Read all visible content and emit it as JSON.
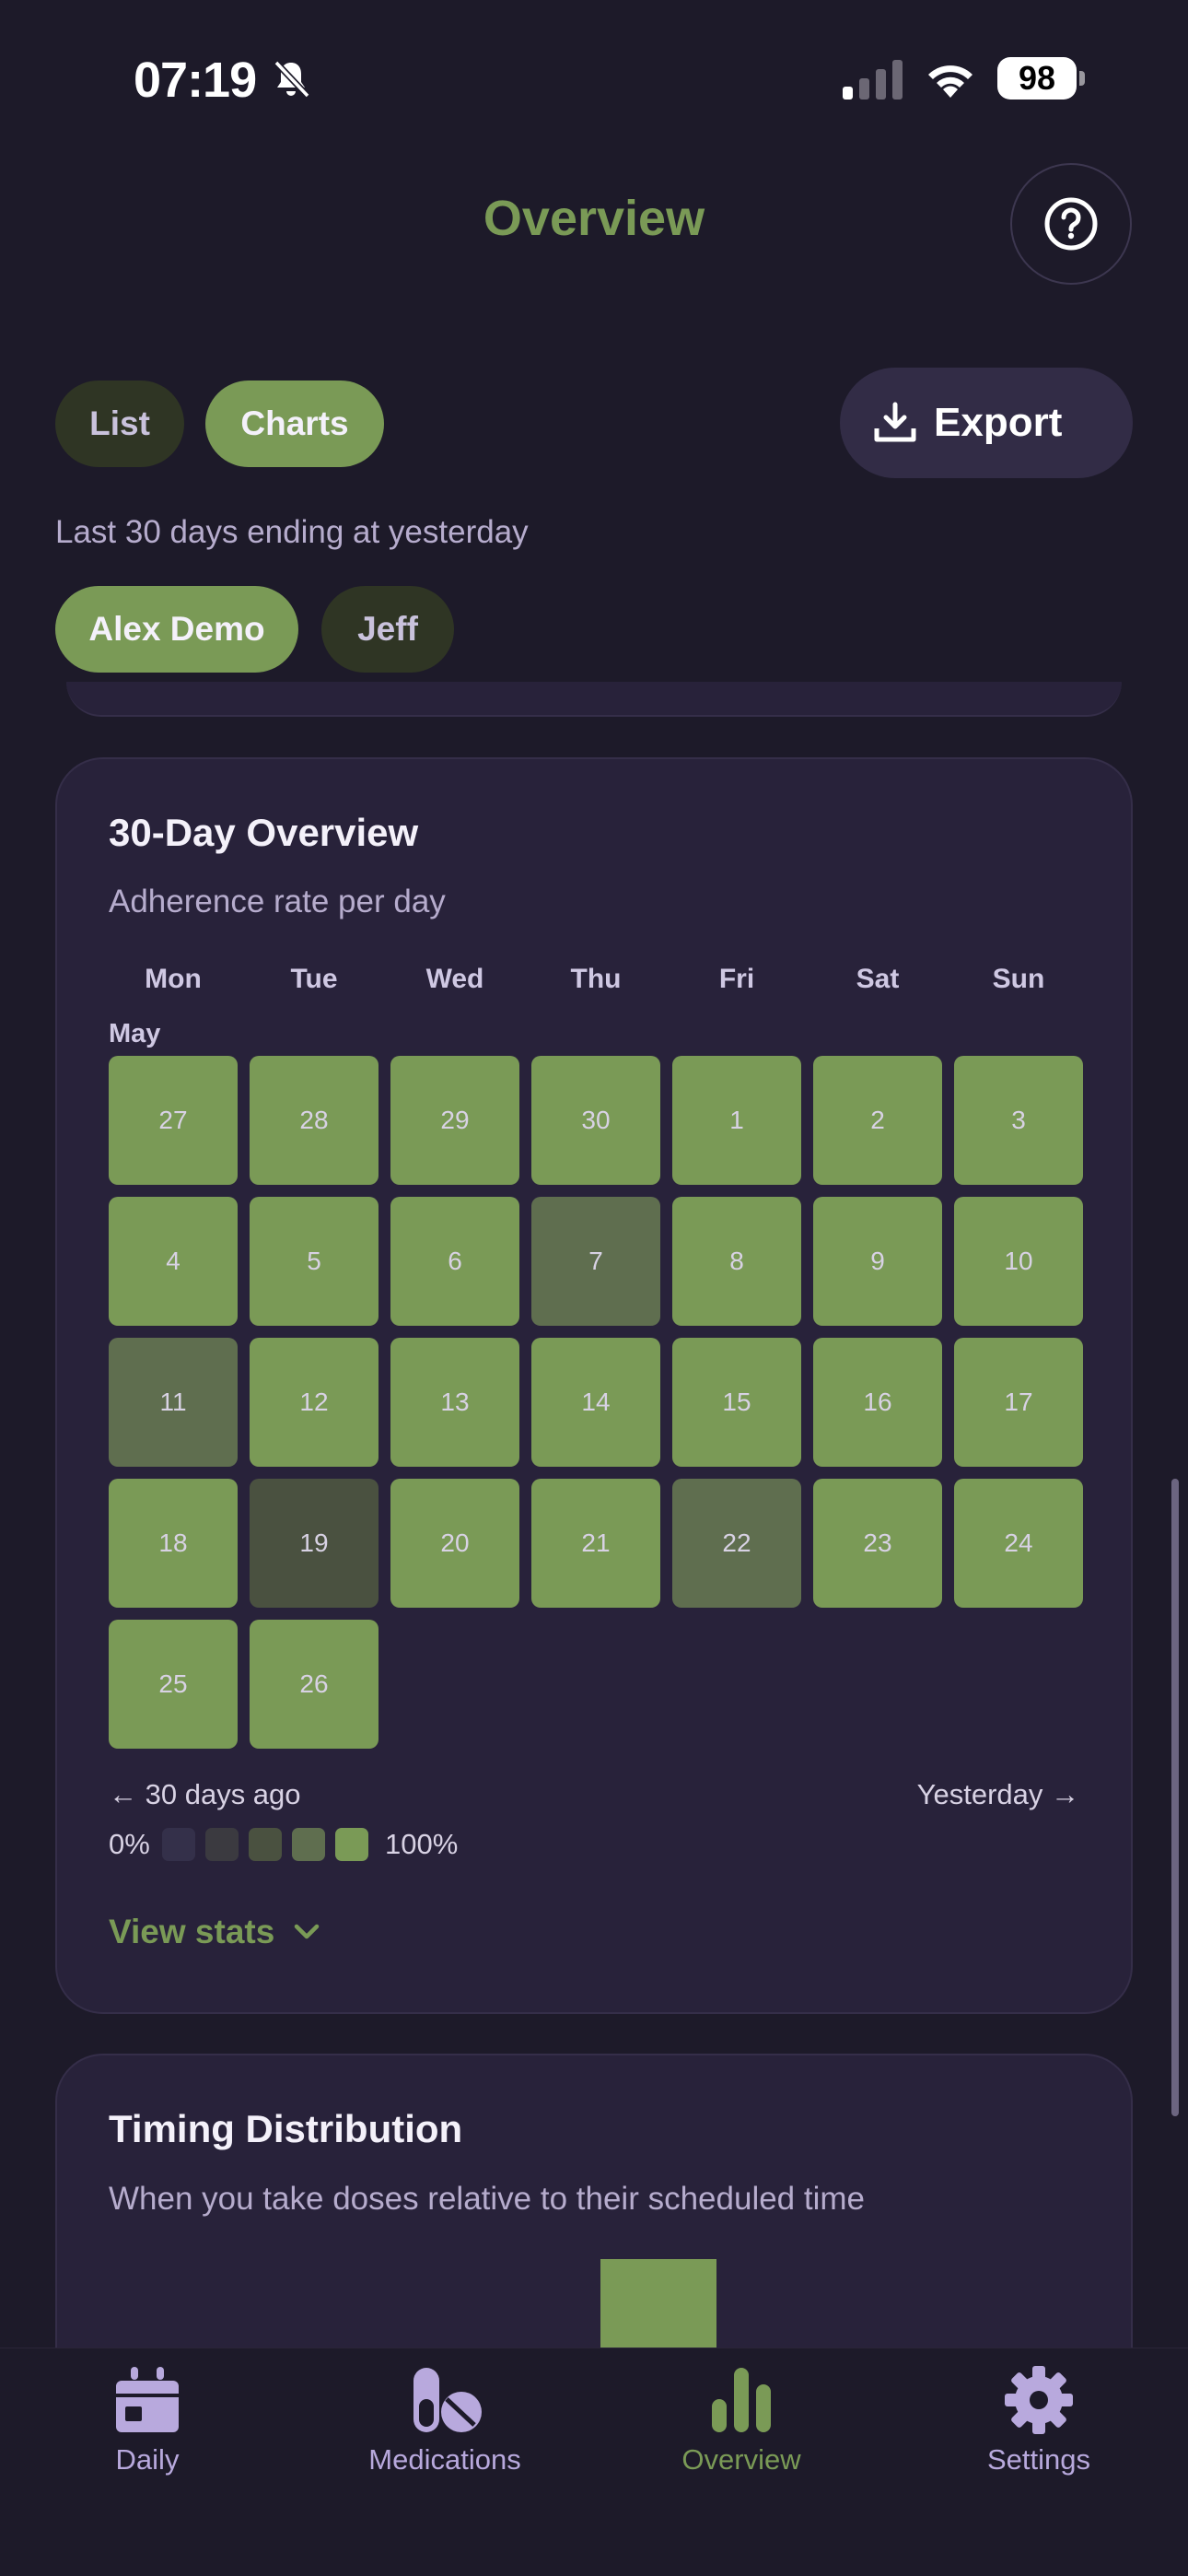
{
  "status_bar": {
    "time": "07:19",
    "battery": "98"
  },
  "header": {
    "title": "Overview",
    "help_icon": "question-circle-icon"
  },
  "view_toggle": {
    "list_label": "List",
    "charts_label": "Charts",
    "active": "Charts"
  },
  "export": {
    "label": "Export",
    "icon": "download-icon"
  },
  "range_text": "Last 30 days ending at yesterday",
  "people": [
    {
      "label": "Alex Demo",
      "active": true
    },
    {
      "label": "Jeff",
      "active": false
    }
  ],
  "overview_card": {
    "title": "30-Day Overview",
    "subtitle": "Adherence rate per day",
    "weekdays": [
      "Mon",
      "Tue",
      "Wed",
      "Thu",
      "Fri",
      "Sat",
      "Sun"
    ],
    "month_label": "May",
    "days": [
      {
        "day": "27",
        "level": 4
      },
      {
        "day": "28",
        "level": 4
      },
      {
        "day": "29",
        "level": 4
      },
      {
        "day": "30",
        "level": 4
      },
      {
        "day": "1",
        "level": 4
      },
      {
        "day": "2",
        "level": 4
      },
      {
        "day": "3",
        "level": 4
      },
      {
        "day": "4",
        "level": 4
      },
      {
        "day": "5",
        "level": 4
      },
      {
        "day": "6",
        "level": 4
      },
      {
        "day": "7",
        "level": 3
      },
      {
        "day": "8",
        "level": 4
      },
      {
        "day": "9",
        "level": 4
      },
      {
        "day": "10",
        "level": 4
      },
      {
        "day": "11",
        "level": 3
      },
      {
        "day": "12",
        "level": 4
      },
      {
        "day": "13",
        "level": 4
      },
      {
        "day": "14",
        "level": 4
      },
      {
        "day": "15",
        "level": 4
      },
      {
        "day": "16",
        "level": 4
      },
      {
        "day": "17",
        "level": 4
      },
      {
        "day": "18",
        "level": 4
      },
      {
        "day": "19",
        "level": 2
      },
      {
        "day": "20",
        "level": 4
      },
      {
        "day": "21",
        "level": 4
      },
      {
        "day": "22",
        "level": 3
      },
      {
        "day": "23",
        "level": 4
      },
      {
        "day": "24",
        "level": 4
      },
      {
        "day": "25",
        "level": 4
      },
      {
        "day": "26",
        "level": 4
      }
    ],
    "level_colors": [
      "#34304a",
      "#3b3a40",
      "#4a5140",
      "#5f6e4f",
      "#7a9a56"
    ],
    "start_label": "← 30 days ago",
    "end_label": "Yesterday →",
    "legend_min": "0%",
    "legend_max": "100%",
    "view_stats_label": "View stats"
  },
  "timing_card": {
    "title": "Timing Distribution",
    "subtitle": "When you take doses relative to their scheduled time"
  },
  "nav": [
    {
      "label": "Daily",
      "icon": "calendar-icon",
      "active": false
    },
    {
      "label": "Medications",
      "icon": "pills-icon",
      "active": false
    },
    {
      "label": "Overview",
      "icon": "bar-chart-icon",
      "active": true
    },
    {
      "label": "Settings",
      "icon": "gear-icon",
      "active": false
    }
  ]
}
